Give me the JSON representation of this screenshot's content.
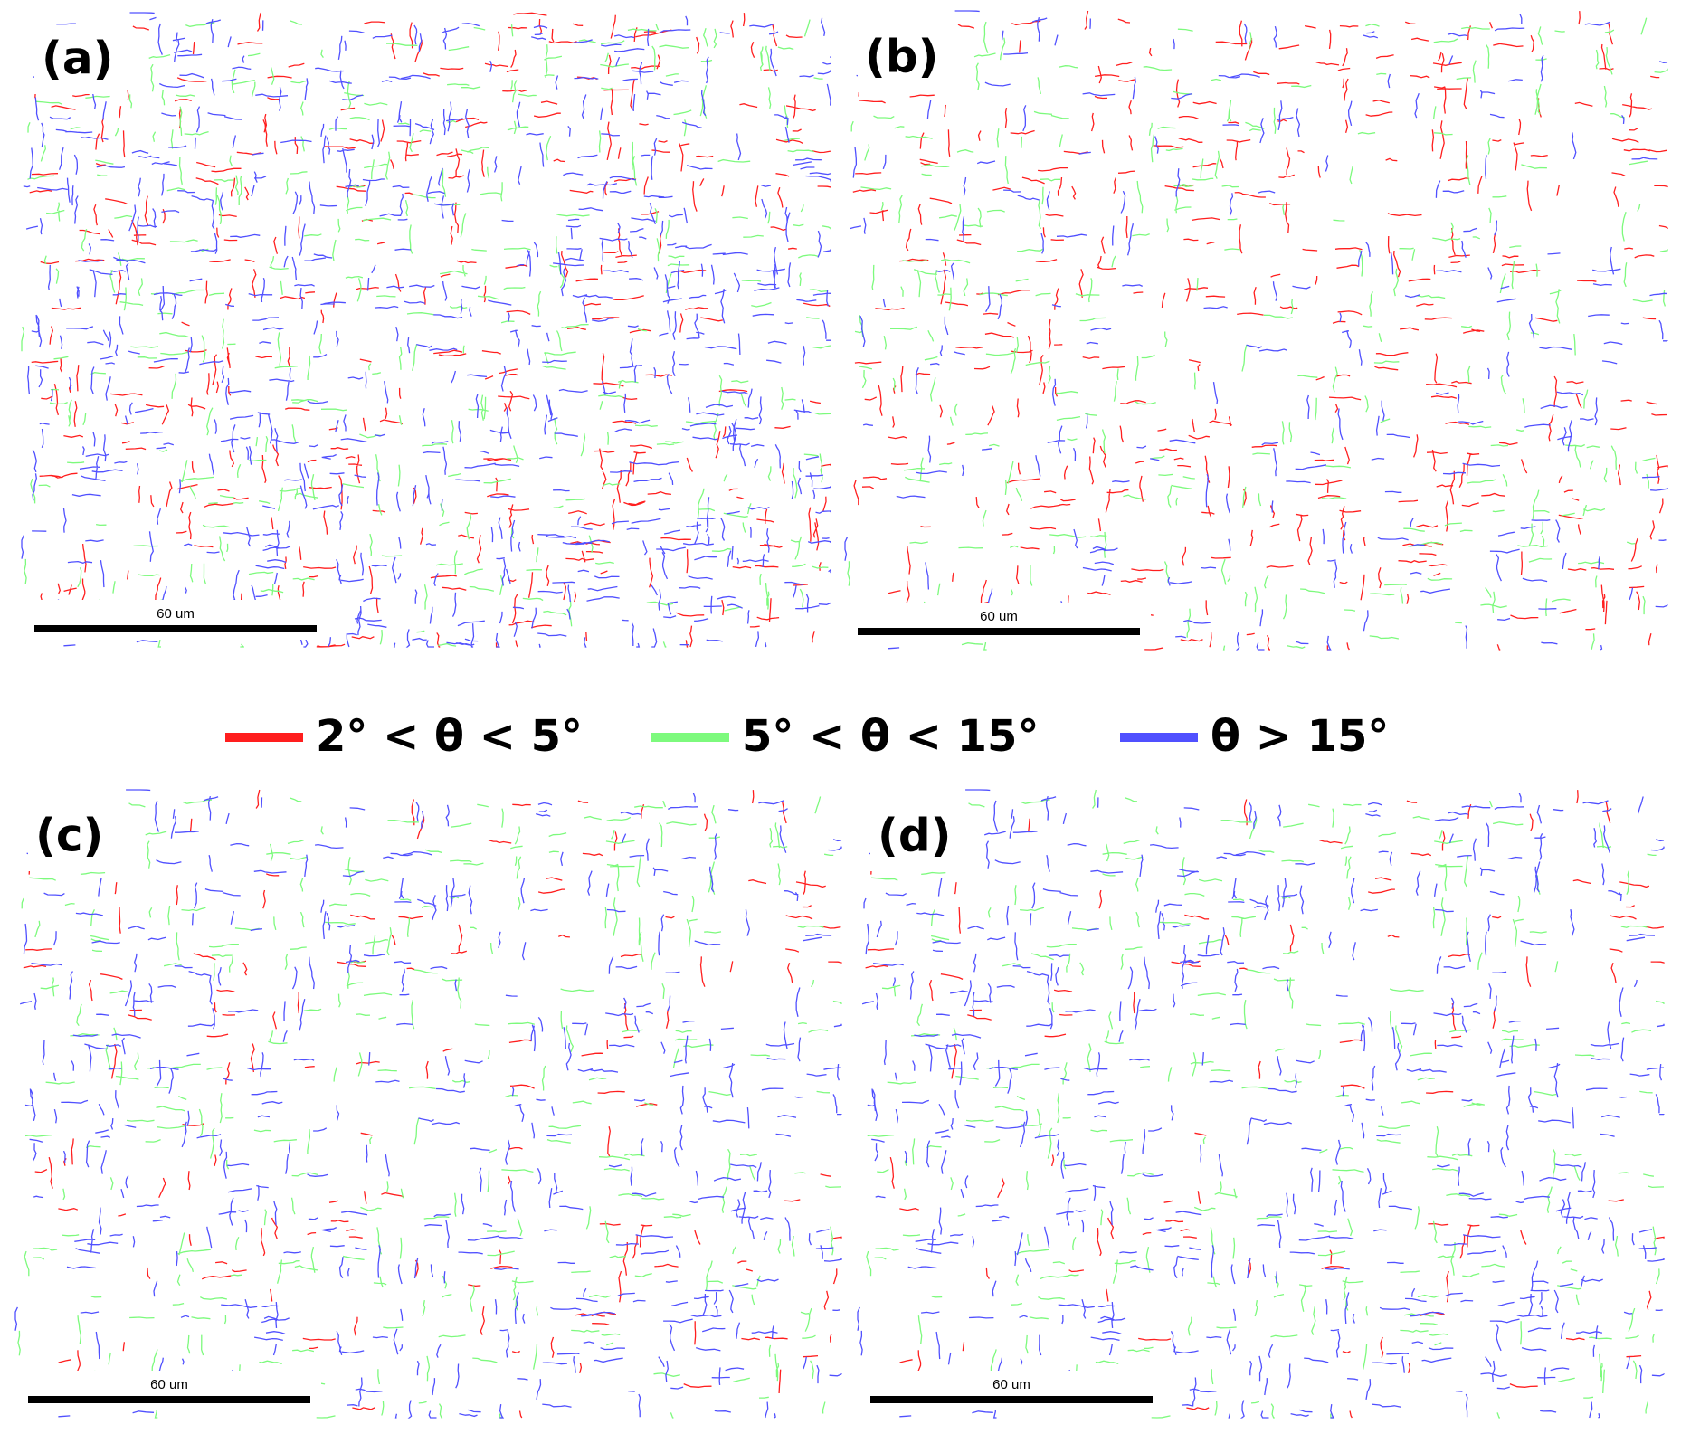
{
  "panels": [
    {
      "label": "(a)",
      "scale_bar": "60 um"
    },
    {
      "label": "(b)",
      "scale_bar": "60 um"
    },
    {
      "label": "(c)",
      "scale_bar": "60 um"
    },
    {
      "label": "(d)",
      "scale_bar": "60 um"
    }
  ],
  "legend": [
    {
      "label": "2° < θ < 5°",
      "color": "#ff1e1e"
    },
    {
      "label": "5° < θ < 15°",
      "color": "#7dfa7d"
    },
    {
      "label": "θ > 15°",
      "color": "#5050ff"
    }
  ]
}
